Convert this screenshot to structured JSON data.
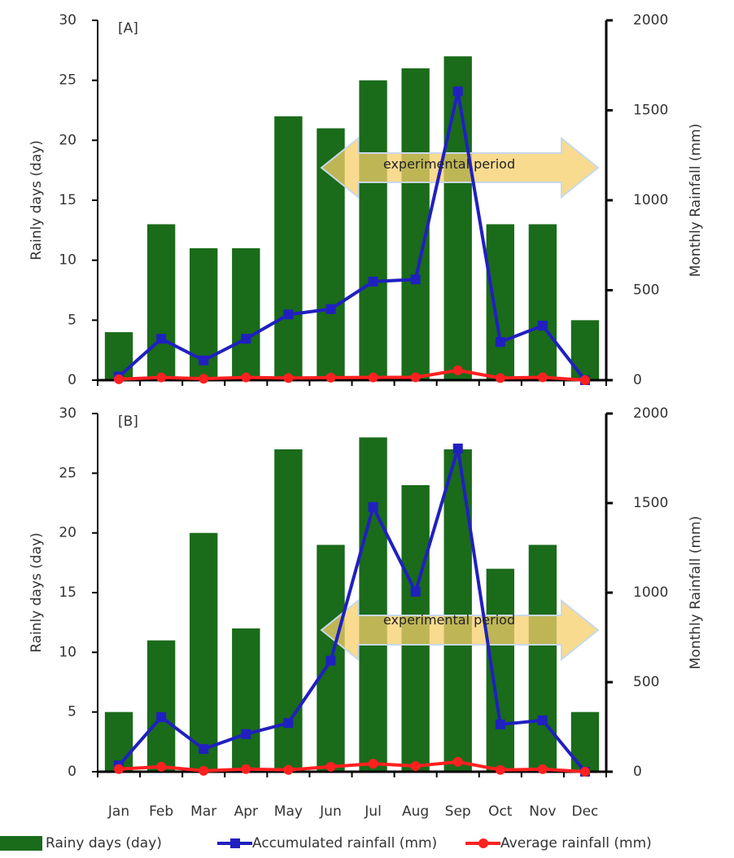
{
  "chart_data": [
    {
      "type": "combo",
      "title": "[A]",
      "annotation": "experimental period",
      "ylabel": "Rainly days (day)",
      "y2label": "Monthly Rainfall (mm)",
      "ylim": [
        0,
        30
      ],
      "yticks": [
        0,
        5,
        10,
        15,
        20,
        25,
        30
      ],
      "y2lim": [
        0,
        2000
      ],
      "y2ticks": [
        0,
        500,
        1000,
        1500,
        2000
      ],
      "series": [
        {
          "name": "Rainy days (day)",
          "type": "bar",
          "color": "#1a6b1a",
          "values": [
            4,
            13,
            11,
            11,
            22,
            21,
            25,
            26,
            27,
            13,
            13,
            5
          ]
        },
        {
          "name": "Accumulated rainfall (mm)",
          "type": "line",
          "axis": "y2",
          "color": "#2020c0",
          "marker": "square",
          "values": [
            20,
            230,
            110,
            230,
            365,
            395,
            548,
            560,
            1605,
            212,
            303,
            0
          ]
        },
        {
          "name": "Average rainfall (mm)",
          "type": "line",
          "axis": "y2",
          "color": "#ff2020",
          "marker": "circle",
          "values": [
            5,
            15,
            8,
            15,
            12,
            14,
            15,
            16,
            55,
            12,
            16,
            0
          ]
        }
      ]
    },
    {
      "type": "combo",
      "title": "[B]",
      "annotation": "experimental period",
      "ylabel": "Rainly days (day)",
      "y2label": "Monthly Rainfall (mm)",
      "categories": [
        "Jan",
        "Feb",
        "Mar",
        "Apr",
        "May",
        "Jun",
        "Jul",
        "Aug",
        "Sep",
        "Oct",
        "Nov",
        "Dec"
      ],
      "ylim": [
        0,
        30
      ],
      "yticks": [
        0,
        5,
        10,
        15,
        20,
        25,
        30
      ],
      "y2lim": [
        0,
        2000
      ],
      "y2ticks": [
        0,
        500,
        1000,
        1500,
        2000
      ],
      "series": [
        {
          "type": "bar",
          "color": "#1a6b1a",
          "values": [
            5,
            11,
            20,
            12,
            27,
            19,
            28,
            24,
            27,
            17,
            19,
            5
          ]
        },
        {
          "type": "line",
          "axis": "y2",
          "color": "#2020c0",
          "marker": "square",
          "values": [
            35,
            305,
            127,
            210,
            272,
            620,
            1478,
            1005,
            1805,
            264,
            287,
            0
          ]
        },
        {
          "type": "line",
          "axis": "y2",
          "color": "#ff2020",
          "marker": "circle",
          "values": [
            15,
            28,
            5,
            15,
            10,
            28,
            45,
            32,
            55,
            10,
            14,
            0
          ]
        }
      ]
    }
  ]
}
